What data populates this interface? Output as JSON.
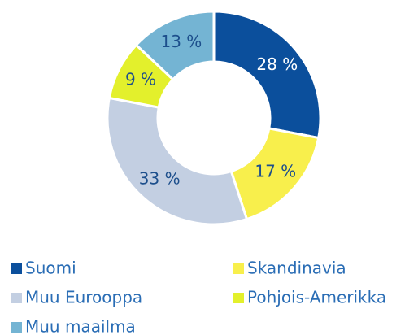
{
  "chart_data": {
    "type": "donut",
    "categories": [
      "Suomi",
      "Skandinavia",
      "Muu Eurooppa",
      "Pohjois-Amerikka",
      "Muu maailma"
    ],
    "values": [
      28,
      17,
      33,
      9,
      13
    ],
    "value_labels": [
      "28 %",
      "17 %",
      "33 %",
      "9 %",
      "13 %"
    ],
    "colors": [
      "#0b4f9c",
      "#f8ef4c",
      "#c3cfe2",
      "#e3f02c",
      "#74b4d3"
    ]
  }
}
